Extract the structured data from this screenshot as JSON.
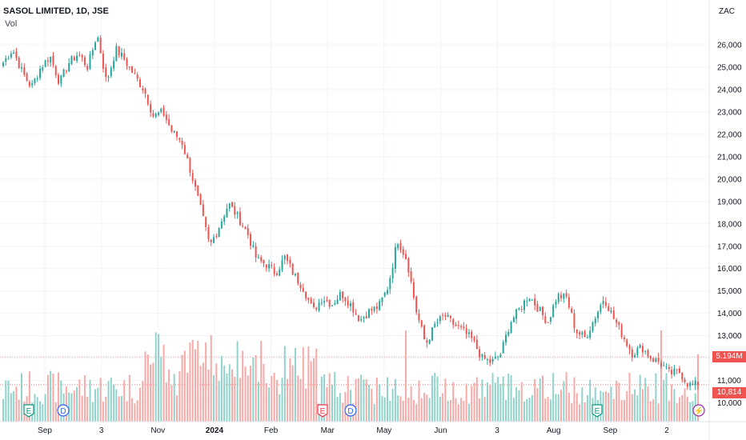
{
  "header": {
    "title": "SASOL LIMITED, 1D, JSE",
    "volume_label": "Vol"
  },
  "currency_label": "ZAC",
  "colors": {
    "up": "#26a69a",
    "down": "#ef5350",
    "up_vol": "#8fd3cb",
    "down_vol": "#f7a9a7",
    "grid": "#f0f3fa",
    "axis_text": "#131722"
  },
  "current": {
    "volume_label": "5.194M",
    "price_label": "10,814"
  },
  "chart_data": {
    "type": "candlestick",
    "title": "SASOL LIMITED, 1D, JSE",
    "y_axis": {
      "ticks": [
        "26,000",
        "25,000",
        "24,000",
        "23,000",
        "22,000",
        "21,000",
        "20,000",
        "19,000",
        "18,000",
        "17,000",
        "16,000",
        "15,000",
        "14,000",
        "13,000",
        "12,000",
        "11,000",
        "10,000"
      ],
      "min": 10000,
      "max": 26000,
      "ylim": [
        9700,
        27000
      ]
    },
    "x_axis": {
      "ticks": [
        "Sep",
        "3",
        "Nov",
        "2024",
        "Feb",
        "Mar",
        "May",
        "Jun",
        "3",
        "Aug",
        "Sep",
        "2"
      ]
    },
    "close_series": {
      "x_range": [
        "2023-08-18",
        "2024-09-13"
      ],
      "price_path": [
        25200,
        25800,
        24800,
        24100,
        25000,
        25500,
        24300,
        25200,
        25600,
        25000,
        26500,
        24300,
        25800,
        25300,
        24600,
        24000,
        22800,
        23000,
        22100,
        21700,
        20300,
        18700,
        17000,
        17900,
        18900,
        18300,
        17600,
        16400,
        16200,
        15800,
        16500,
        15700,
        15100,
        14100,
        14700,
        14400,
        14900,
        14400,
        13700,
        14100,
        14300,
        15200,
        17300,
        16400,
        14100,
        12600,
        13500,
        13900,
        13500,
        13200,
        12800,
        12000,
        11800,
        12200,
        13600,
        14200,
        14800,
        14200,
        13600,
        14800,
        14700,
        13200,
        12900,
        13800,
        14700,
        13800,
        13000,
        12200,
        12500,
        12000,
        11800,
        11300,
        11400,
        10800
      ],
      "last_close": 10814
    },
    "volume": {
      "last": "5.194M",
      "peak_region": [
        "Nov",
        "Apr"
      ]
    },
    "events": [
      {
        "label": "E",
        "type": "earnings",
        "near": "Aug"
      },
      {
        "label": "D",
        "type": "dividend",
        "near": "Sep"
      },
      {
        "label": "E",
        "type": "earnings",
        "near": "Feb"
      },
      {
        "label": "D",
        "type": "dividend",
        "near": "Mar"
      },
      {
        "label": "E",
        "type": "earnings",
        "near": "Aug"
      },
      {
        "label": "⚡",
        "type": "split",
        "near": "Sep"
      }
    ]
  }
}
